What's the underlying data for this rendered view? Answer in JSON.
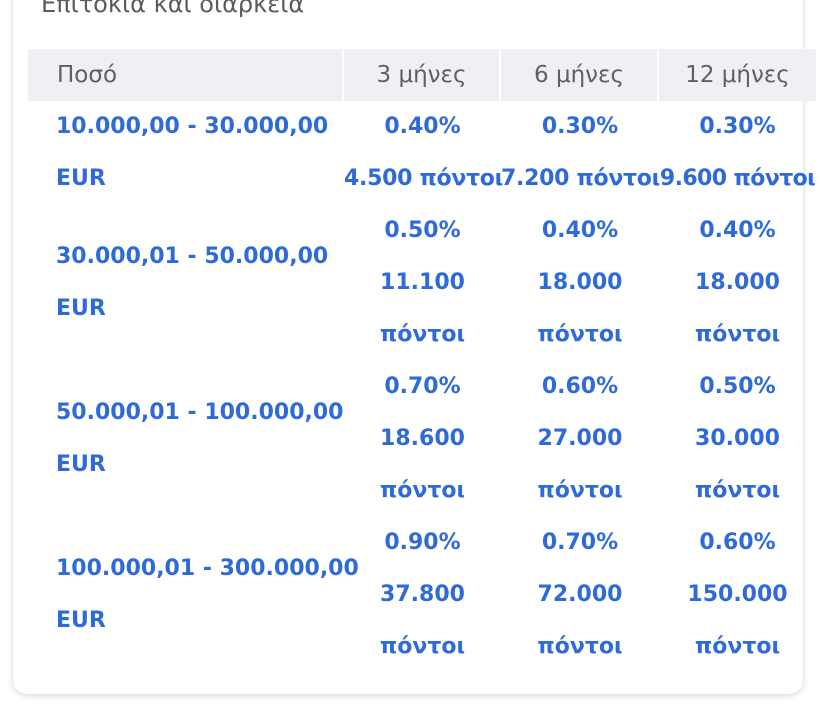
{
  "section": {
    "title": "Επιτόκια και διάρκεια"
  },
  "table": {
    "headers": {
      "amount": "Ποσό",
      "m3": "3 μήνες",
      "m6": "6 μήνες",
      "m12": "12 μήνες"
    },
    "rows": [
      {
        "amount_range": "10.000,00 - 30.000,00",
        "currency": "EUR",
        "m3": {
          "rate": "0.40%",
          "points": "4.500 πόντοι"
        },
        "m6": {
          "rate": "0.30%",
          "points": "7.200 πόντοι"
        },
        "m12": {
          "rate": "0.30%",
          "points": "9.600 πόντοι"
        }
      },
      {
        "amount_range": "30.000,01 - 50.000,00",
        "currency": "EUR",
        "m3": {
          "rate": "0.50%",
          "points": "11.100 πόντοι"
        },
        "m6": {
          "rate": "0.40%",
          "points": "18.000 πόντοι"
        },
        "m12": {
          "rate": "0.40%",
          "points": "18.000 πόντοι"
        }
      },
      {
        "amount_range": "50.000,01 - 100.000,00",
        "currency": "EUR",
        "m3": {
          "rate": "0.70%",
          "points": "18.600 πόντοι"
        },
        "m6": {
          "rate": "0.60%",
          "points": "27.000 πόντοι"
        },
        "m12": {
          "rate": "0.50%",
          "points": "30.000 πόντοι"
        }
      },
      {
        "amount_range": "100.000,01 - 300.000,00",
        "currency": "EUR",
        "m3": {
          "rate": "0.90%",
          "points": "37.800 πόντοι"
        },
        "m6": {
          "rate": "0.70%",
          "points": "72.000 πόντοι"
        },
        "m12": {
          "rate": "0.60%",
          "points": "150.000 πόντοι"
        }
      }
    ]
  },
  "colors": {
    "link_blue": "#2f6bd8",
    "header_bg": "#eef0f3",
    "header_text": "#5f6064",
    "title_text": "#5b5b5b"
  }
}
